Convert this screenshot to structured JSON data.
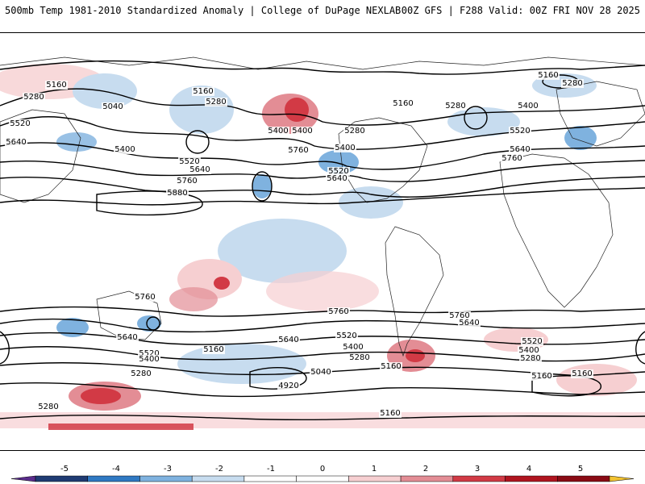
{
  "header": {
    "left_title": "500mb Temp 1981-2010 Standardized Anomaly | College of DuPage NEXLAB",
    "right_title": "00Z GFS | F288 Valid: 00Z FRI NOV 28 2025"
  },
  "map": {
    "projection": "cylindrical global",
    "background_color": "#ffffff",
    "contour_color": "#000000",
    "contour_labels": [
      "5160",
      "5280",
      "5040",
      "5160",
      "5280",
      "5400",
      "5520",
      "5640",
      "5400",
      "5520",
      "5640",
      "5760",
      "5880",
      "5400",
      "5280",
      "5400",
      "5520",
      "5640",
      "5760",
      "5160",
      "5280",
      "5160",
      "5280",
      "5400",
      "5520",
      "5640",
      "5760",
      "5760",
      "5640",
      "5520",
      "5400",
      "5280",
      "5760",
      "5640",
      "5520",
      "5400",
      "5280",
      "5160",
      "5040",
      "4920",
      "5160",
      "5760",
      "5640",
      "5520",
      "5400",
      "5280",
      "5160",
      "5160",
      "5280",
      "5160"
    ]
  },
  "colorbar": {
    "tick_labels": [
      "-5",
      "-4",
      "-3",
      "-2",
      "-1",
      "0",
      "1",
      "2",
      "3",
      "4",
      "5"
    ],
    "colors": [
      "#5a2c8c",
      "#1f3b73",
      "#2f79c3",
      "#7fb2df",
      "#c7dcef",
      "#ffffff",
      "#ffffff",
      "#f6cfd1",
      "#e38d95",
      "#d23a45",
      "#b0141f",
      "#8a0b14",
      "#f2c230"
    ]
  }
}
